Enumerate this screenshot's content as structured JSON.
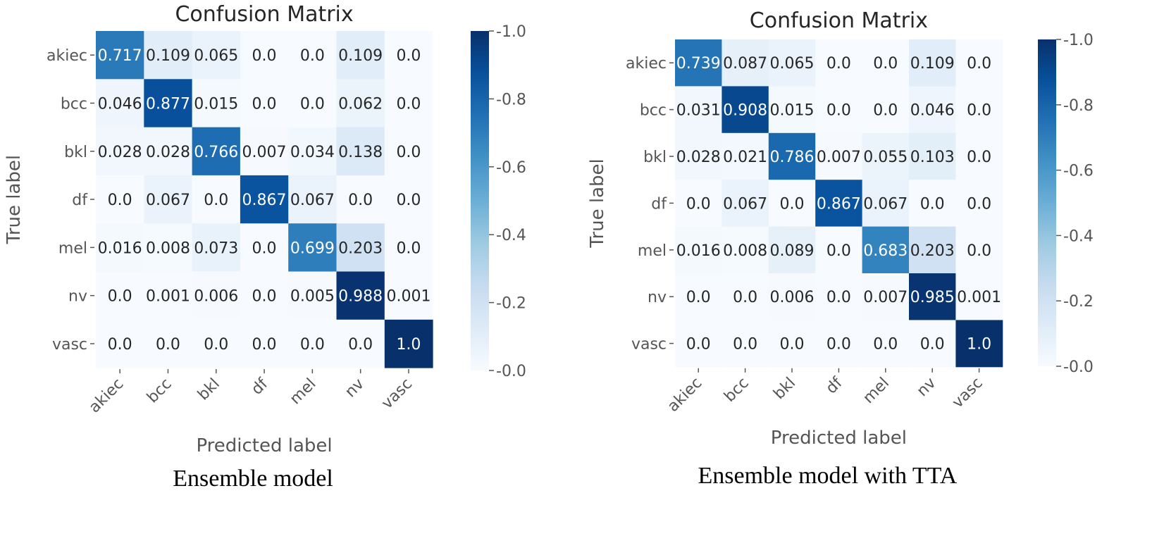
{
  "chart_data": [
    {
      "type": "heatmap",
      "title": "Confusion Matrix",
      "xlabel": "Predicted label",
      "ylabel": "True label",
      "caption": "Ensemble model",
      "categories": [
        "akiec",
        "bcc",
        "bkl",
        "df",
        "mel",
        "nv",
        "vasc"
      ],
      "values": [
        [
          "0.717",
          "0.109",
          "0.065",
          "0.0",
          "0.0",
          "0.109",
          "0.0"
        ],
        [
          "0.046",
          "0.877",
          "0.015",
          "0.0",
          "0.0",
          "0.062",
          "0.0"
        ],
        [
          "0.028",
          "0.028",
          "0.766",
          "0.007",
          "0.034",
          "0.138",
          "0.0"
        ],
        [
          "0.0",
          "0.067",
          "0.0",
          "0.867",
          "0.067",
          "0.0",
          "0.0"
        ],
        [
          "0.016",
          "0.008",
          "0.073",
          "0.0",
          "0.699",
          "0.203",
          "0.0"
        ],
        [
          "0.0",
          "0.001",
          "0.006",
          "0.0",
          "0.005",
          "0.988",
          "0.001"
        ],
        [
          "0.0",
          "0.0",
          "0.0",
          "0.0",
          "0.0",
          "0.0",
          "1.0"
        ]
      ],
      "colorbar": {
        "range": [
          0,
          1
        ],
        "ticks": [
          "0.0",
          "0.2",
          "0.4",
          "0.6",
          "0.8",
          "1.0"
        ]
      },
      "colormap": "Blues"
    },
    {
      "type": "heatmap",
      "title": "Confusion Matrix",
      "xlabel": "Predicted label",
      "ylabel": "True label",
      "caption": "Ensemble model with TTA",
      "categories": [
        "akiec",
        "bcc",
        "bkl",
        "df",
        "mel",
        "nv",
        "vasc"
      ],
      "values": [
        [
          "0.739",
          "0.087",
          "0.065",
          "0.0",
          "0.0",
          "0.109",
          "0.0"
        ],
        [
          "0.031",
          "0.908",
          "0.015",
          "0.0",
          "0.0",
          "0.046",
          "0.0"
        ],
        [
          "0.028",
          "0.021",
          "0.786",
          "0.007",
          "0.055",
          "0.103",
          "0.0"
        ],
        [
          "0.0",
          "0.067",
          "0.0",
          "0.867",
          "0.067",
          "0.0",
          "0.0"
        ],
        [
          "0.016",
          "0.008",
          "0.089",
          "0.0",
          "0.683",
          "0.203",
          "0.0"
        ],
        [
          "0.0",
          "0.0",
          "0.006",
          "0.0",
          "0.007",
          "0.985",
          "0.001"
        ],
        [
          "0.0",
          "0.0",
          "0.0",
          "0.0",
          "0.0",
          "0.0",
          "1.0"
        ]
      ],
      "colorbar": {
        "range": [
          0,
          1
        ],
        "ticks": [
          "0.0",
          "0.2",
          "0.4",
          "0.6",
          "0.8",
          "1.0"
        ]
      },
      "colormap": "Blues"
    }
  ]
}
